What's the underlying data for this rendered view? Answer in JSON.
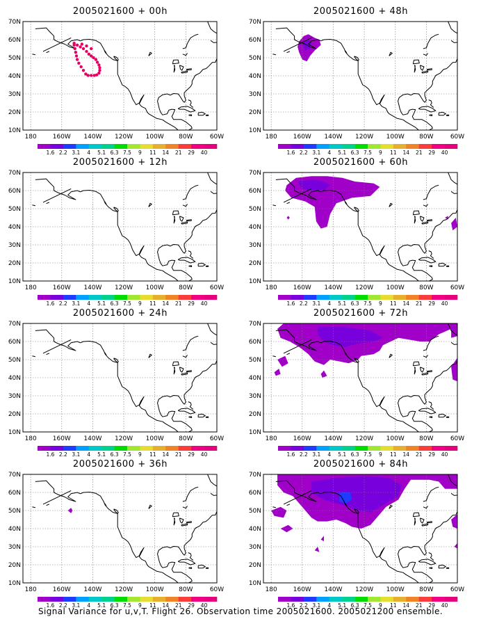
{
  "panels": [
    {
      "title": "2005021600 + 00h",
      "lead": "00h"
    },
    {
      "title": "2005021600 + 48h",
      "lead": "48h"
    },
    {
      "title": "2005021600 + 12h",
      "lead": "12h"
    },
    {
      "title": "2005021600 + 60h",
      "lead": "60h"
    },
    {
      "title": "2005021600 + 24h",
      "lead": "24h"
    },
    {
      "title": "2005021600 + 72h",
      "lead": "72h"
    },
    {
      "title": "2005021600 + 36h",
      "lead": "36h"
    },
    {
      "title": "2005021600 + 84h",
      "lead": "84h"
    }
  ],
  "lat_labels": [
    "70N",
    "60N",
    "50N",
    "40N",
    "30N",
    "20N",
    "10N"
  ],
  "lon_labels": [
    "180",
    "160W",
    "140W",
    "120W",
    "100W",
    "80W",
    "60W"
  ],
  "legend": {
    "values": [
      "1.6",
      "2.2",
      "3.1",
      "4",
      "5.1",
      "6.3",
      "7.5",
      "9",
      "11",
      "14",
      "21",
      "29",
      "40"
    ],
    "colors": [
      "#a000c8",
      "#7800dc",
      "#1e3cff",
      "#00a0ff",
      "#00c8c8",
      "#00d28c",
      "#00dc00",
      "#a0e632",
      "#e6dc32",
      "#e6af2d",
      "#f08228",
      "#fa3c3c",
      "#f00082",
      "#e6007d"
    ]
  },
  "footer": "Signal Variance for u,v,T. Flight 26. Observation time 2005021600. 2005021200 ensemble."
}
